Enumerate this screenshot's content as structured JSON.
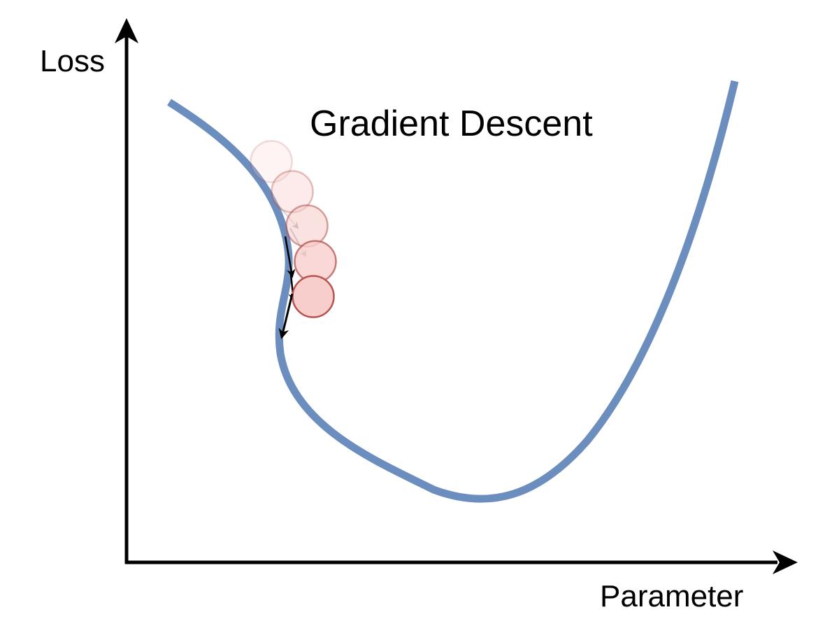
{
  "diagram": {
    "title": "Gradient Descent",
    "y_axis_label": "Loss",
    "x_axis_label": "Parameter",
    "balls": [
      {
        "step": 1,
        "opacity": 0.22
      },
      {
        "step": 2,
        "opacity": 0.4
      },
      {
        "step": 3,
        "opacity": 0.58
      },
      {
        "step": 4,
        "opacity": 0.78
      },
      {
        "step": 5,
        "opacity": 1.0
      }
    ]
  },
  "colors": {
    "curve": "#6c8ebf",
    "ball_fill": "#f8cecc",
    "ball_stroke": "#b85450",
    "axis": "#000000",
    "text": "#000000"
  }
}
